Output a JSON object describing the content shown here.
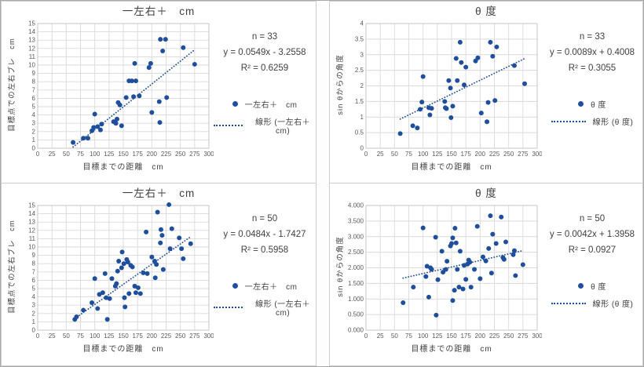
{
  "colors": {
    "series": "#1f4e9c",
    "grid": "#dadada",
    "frame": "#c6c6c6",
    "tick_text": "#595959",
    "label_text": "#404040"
  },
  "chart_data": [
    {
      "type": "scatter",
      "title": "一左右＋　cm",
      "stats": {
        "n": "n = 33",
        "equation": "y = 0.0549x - 3.2558",
        "r2": "R² = 0.6259"
      },
      "legend": {
        "series": "一左右＋　cm",
        "trend": "線形 (一左右＋　cm)"
      },
      "x_axis": {
        "label": "目標までの距離　cm",
        "min": 0,
        "max": 300,
        "step": 25,
        "decimals": -1
      },
      "y_axis": {
        "label": "目標点での左右ブレ　cm",
        "min": 0,
        "max": 15,
        "step": 1,
        "decimals": -1
      },
      "trend": {
        "slope": 0.0549,
        "intercept": -3.2558,
        "x_start": 62,
        "x_end": 275
      },
      "points": [
        [
          62,
          0.7
        ],
        [
          80,
          1.2
        ],
        [
          88,
          1.2
        ],
        [
          95,
          2.1
        ],
        [
          98,
          2.5
        ],
        [
          100,
          4.1
        ],
        [
          105,
          2.6
        ],
        [
          110,
          2.2
        ],
        [
          112,
          2.9
        ],
        [
          133,
          3.2
        ],
        [
          137,
          3.0
        ],
        [
          139,
          3.5
        ],
        [
          141,
          5.5
        ],
        [
          144,
          5.2
        ],
        [
          147,
          2.7
        ],
        [
          155,
          6.1
        ],
        [
          160,
          8.1
        ],
        [
          165,
          8.1
        ],
        [
          168,
          6.2
        ],
        [
          170,
          10.2
        ],
        [
          172,
          8.1
        ],
        [
          178,
          6.3
        ],
        [
          195,
          9.7
        ],
        [
          198,
          10.2
        ],
        [
          200,
          4.3
        ],
        [
          213,
          5.6
        ],
        [
          214,
          3.1
        ],
        [
          215,
          13.1
        ],
        [
          219,
          11.7
        ],
        [
          224,
          13.1
        ],
        [
          226,
          6.1
        ],
        [
          255,
          12.1
        ],
        [
          275,
          10.1
        ]
      ]
    },
    {
      "type": "scatter",
      "title": "θ 度",
      "stats": {
        "n": "n = 33",
        "equation": "y = 0.0089x + 0.4008",
        "r2": "R² = 0.3055"
      },
      "legend": {
        "series": "θ 度",
        "trend": "線形 (θ 度)"
      },
      "x_axis": {
        "label": "目標までの距離　cm",
        "min": 0,
        "max": 300,
        "step": 25,
        "decimals": -1
      },
      "y_axis": {
        "label": "sin θからの角度",
        "min": 0,
        "max": 4,
        "step": 0.5,
        "decimals": -1
      },
      "trend": {
        "slope": 0.0089,
        "intercept": 0.4008,
        "x_start": 60,
        "x_end": 278
      },
      "points": [
        [
          60,
          0.47
        ],
        [
          82,
          0.72
        ],
        [
          90,
          0.65
        ],
        [
          95,
          1.25
        ],
        [
          98,
          1.48
        ],
        [
          100,
          2.3
        ],
        [
          110,
          1.3
        ],
        [
          112,
          1.07
        ],
        [
          115,
          1.28
        ],
        [
          138,
          1.5
        ],
        [
          139,
          1.3
        ],
        [
          141,
          1.27
        ],
        [
          145,
          2.17
        ],
        [
          148,
          1.93
        ],
        [
          149,
          0.98
        ],
        [
          152,
          1.35
        ],
        [
          158,
          2.88
        ],
        [
          160,
          2.17
        ],
        [
          165,
          3.4
        ],
        [
          167,
          2.75
        ],
        [
          172,
          2.03
        ],
        [
          175,
          2.6
        ],
        [
          192,
          2.8
        ],
        [
          196,
          2.9
        ],
        [
          202,
          1.13
        ],
        [
          212,
          0.85
        ],
        [
          214,
          1.47
        ],
        [
          218,
          3.4
        ],
        [
          222,
          2.95
        ],
        [
          226,
          1.53
        ],
        [
          229,
          3.25
        ],
        [
          260,
          2.65
        ],
        [
          278,
          2.07
        ]
      ]
    },
    {
      "type": "scatter",
      "title": "一左右＋　cm",
      "stats": {
        "n": "n = 50",
        "equation": "y = 0.0484x - 1.7427",
        "r2": "R² = 0.5958"
      },
      "legend": {
        "series": "一左右＋　cm",
        "trend": "線形 (一左右＋　cm)"
      },
      "x_axis": {
        "label": "目標までの距離　cm",
        "min": 0,
        "max": 300,
        "step": 25,
        "decimals": -1
      },
      "y_axis": {
        "label": "目標点での左右ブレ　cm",
        "min": 0,
        "max": 15,
        "step": 1,
        "decimals": -1
      },
      "trend": {
        "slope": 0.0484,
        "intercept": -1.7427,
        "x_start": 65,
        "x_end": 268
      },
      "points": [
        [
          65,
          1.3
        ],
        [
          68,
          1.6
        ],
        [
          80,
          2.4
        ],
        [
          95,
          3.3
        ],
        [
          100,
          6.2
        ],
        [
          105,
          2.6
        ],
        [
          108,
          4.3
        ],
        [
          114,
          4.5
        ],
        [
          118,
          6.8
        ],
        [
          120,
          3.9
        ],
        [
          122,
          1.3
        ],
        [
          126,
          3.8
        ],
        [
          130,
          6.2
        ],
        [
          136,
          5.3
        ],
        [
          138,
          5.6
        ],
        [
          140,
          7.1
        ],
        [
          142,
          8.3
        ],
        [
          147,
          7.5
        ],
        [
          148,
          9.4
        ],
        [
          151,
          8.0
        ],
        [
          152,
          3.9
        ],
        [
          153,
          2.8
        ],
        [
          156,
          8.5
        ],
        [
          158,
          8.2
        ],
        [
          160,
          4.4
        ],
        [
          163,
          7.8
        ],
        [
          166,
          7.6
        ],
        [
          170,
          5.3
        ],
        [
          172,
          4.5
        ],
        [
          176,
          5.1
        ],
        [
          180,
          4.4
        ],
        [
          185,
          6.9
        ],
        [
          190,
          11.8
        ],
        [
          192,
          6.8
        ],
        [
          200,
          8.8
        ],
        [
          205,
          8.3
        ],
        [
          206,
          6.3
        ],
        [
          208,
          7.9
        ],
        [
          210,
          14.2
        ],
        [
          215,
          10.5
        ],
        [
          216,
          12.1
        ],
        [
          218,
          11.4
        ],
        [
          220,
          7.3
        ],
        [
          230,
          15.1
        ],
        [
          232,
          9.8
        ],
        [
          235,
          12.2
        ],
        [
          248,
          11.1
        ],
        [
          252,
          9.8
        ],
        [
          255,
          8.6
        ],
        [
          268,
          10.4
        ]
      ]
    },
    {
      "type": "scatter",
      "title": "θ 度",
      "stats": {
        "n": "n = 50",
        "equation": "y = 0.0042x + 1.3958",
        "r2": "R² = 0.0927"
      },
      "legend": {
        "series": "θ 度",
        "trend": "線形 (θ 度)"
      },
      "x_axis": {
        "label": "目標までの距離　cm",
        "min": 0,
        "max": 300,
        "step": 25,
        "decimals": -1
      },
      "y_axis": {
        "label": "sin θからの角度",
        "min": 0,
        "max": 4,
        "step": 0.5,
        "decimals": 3
      },
      "trend": {
        "slope": 0.0042,
        "intercept": 1.3958,
        "x_start": 65,
        "x_end": 275
      },
      "points": [
        [
          65,
          0.88
        ],
        [
          83,
          1.38
        ],
        [
          100,
          3.28
        ],
        [
          105,
          1.72
        ],
        [
          107,
          2.05
        ],
        [
          110,
          1.06
        ],
        [
          113,
          2.0
        ],
        [
          115,
          1.95
        ],
        [
          122,
          2.98
        ],
        [
          123,
          0.48
        ],
        [
          126,
          1.62
        ],
        [
          133,
          2.53
        ],
        [
          135,
          1.86
        ],
        [
          140,
          1.95
        ],
        [
          142,
          2.21
        ],
        [
          148,
          2.7
        ],
        [
          150,
          2.78
        ],
        [
          152,
          2.96
        ],
        [
          152,
          0.95
        ],
        [
          155,
          1.28
        ],
        [
          156,
          3.27
        ],
        [
          158,
          2.8
        ],
        [
          160,
          1.95
        ],
        [
          163,
          1.38
        ],
        [
          165,
          2.53
        ],
        [
          170,
          1.32
        ],
        [
          172,
          2.08
        ],
        [
          175,
          1.63
        ],
        [
          178,
          2.12
        ],
        [
          180,
          2.25
        ],
        [
          182,
          2.18
        ],
        [
          184,
          1.38
        ],
        [
          190,
          1.95
        ],
        [
          195,
          3.33
        ],
        [
          200,
          1.65
        ],
        [
          205,
          2.35
        ],
        [
          210,
          2.22
        ],
        [
          215,
          2.62
        ],
        [
          218,
          3.67
        ],
        [
          220,
          1.83
        ],
        [
          222,
          3.08
        ],
        [
          228,
          2.78
        ],
        [
          237,
          3.63
        ],
        [
          240,
          2.33
        ],
        [
          242,
          2.27
        ],
        [
          245,
          2.83
        ],
        [
          258,
          2.42
        ],
        [
          260,
          2.55
        ],
        [
          262,
          1.75
        ],
        [
          275,
          2.1
        ]
      ]
    }
  ]
}
